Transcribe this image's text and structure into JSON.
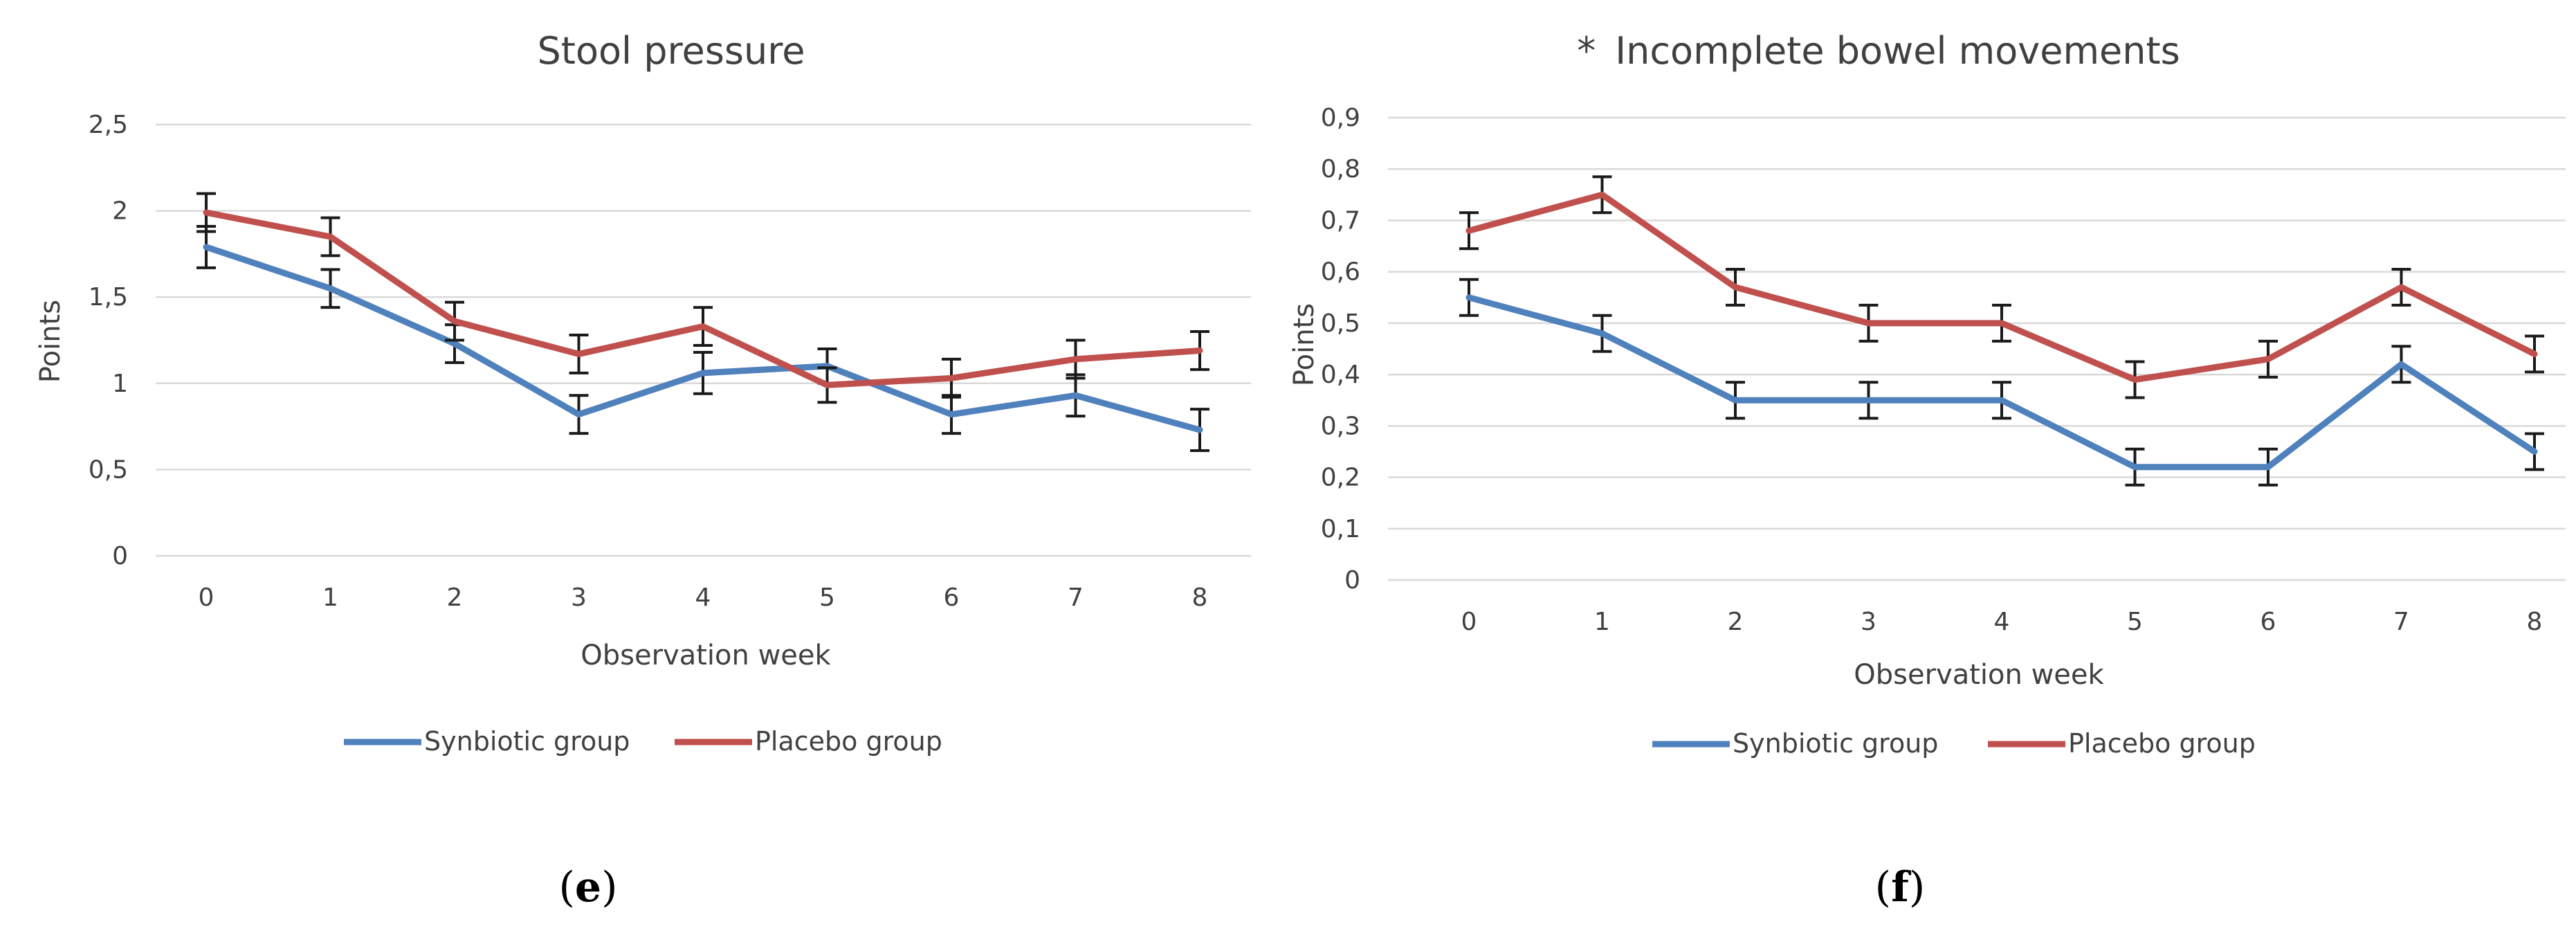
{
  "chart_data": [
    {
      "type": "line",
      "panel_label": "e",
      "title": "Stool pressure",
      "xlabel": "Observation week",
      "ylabel": "Points",
      "categories": [
        "0",
        "1",
        "2",
        "3",
        "4",
        "5",
        "6",
        "7",
        "8"
      ],
      "yticks": [
        "0",
        "0,5",
        "1",
        "1,5",
        "2",
        "2,5"
      ],
      "ylim": [
        0,
        2.5
      ],
      "grid": true,
      "legend": "bottom",
      "series": [
        {
          "name": "Synbiotic group",
          "color": "#4f81bd",
          "values": [
            1.79,
            1.55,
            1.23,
            0.82,
            1.06,
            1.1,
            0.82,
            0.93,
            0.73
          ],
          "errors": [
            0.12,
            0.11,
            0.11,
            0.11,
            0.12,
            0.1,
            0.11,
            0.12,
            0.12
          ]
        },
        {
          "name": "Placebo group",
          "color": "#c0504d",
          "values": [
            1.99,
            1.85,
            1.36,
            1.17,
            1.33,
            0.99,
            1.03,
            1.14,
            1.19
          ],
          "errors": [
            0.11,
            0.11,
            0.11,
            0.11,
            0.11,
            0.1,
            0.11,
            0.11,
            0.11
          ]
        }
      ]
    },
    {
      "type": "line",
      "panel_label": "f",
      "title": "Incomplete bowel movements",
      "title_marker": "*",
      "xlabel": "Observation week",
      "ylabel": "Points",
      "categories": [
        "0",
        "1",
        "2",
        "3",
        "4",
        "5",
        "6",
        "7",
        "8"
      ],
      "yticks": [
        "0",
        "0,1",
        "0,2",
        "0,3",
        "0,4",
        "0,5",
        "0,6",
        "0,7",
        "0,8",
        "0,9"
      ],
      "ylim": [
        0,
        0.9
      ],
      "grid": true,
      "legend": "bottom",
      "series": [
        {
          "name": "Synbiotic group",
          "color": "#4f81bd",
          "values": [
            0.55,
            0.48,
            0.35,
            0.35,
            0.35,
            0.22,
            0.22,
            0.42,
            0.25
          ],
          "errors": [
            0.035,
            0.035,
            0.035,
            0.035,
            0.035,
            0.035,
            0.035,
            0.035,
            0.035
          ]
        },
        {
          "name": "Placebo group",
          "color": "#c0504d",
          "values": [
            0.68,
            0.75,
            0.57,
            0.5,
            0.5,
            0.39,
            0.43,
            0.57,
            0.44
          ],
          "errors": [
            0.035,
            0.035,
            0.035,
            0.035,
            0.035,
            0.035,
            0.035,
            0.035,
            0.035
          ]
        }
      ]
    }
  ]
}
